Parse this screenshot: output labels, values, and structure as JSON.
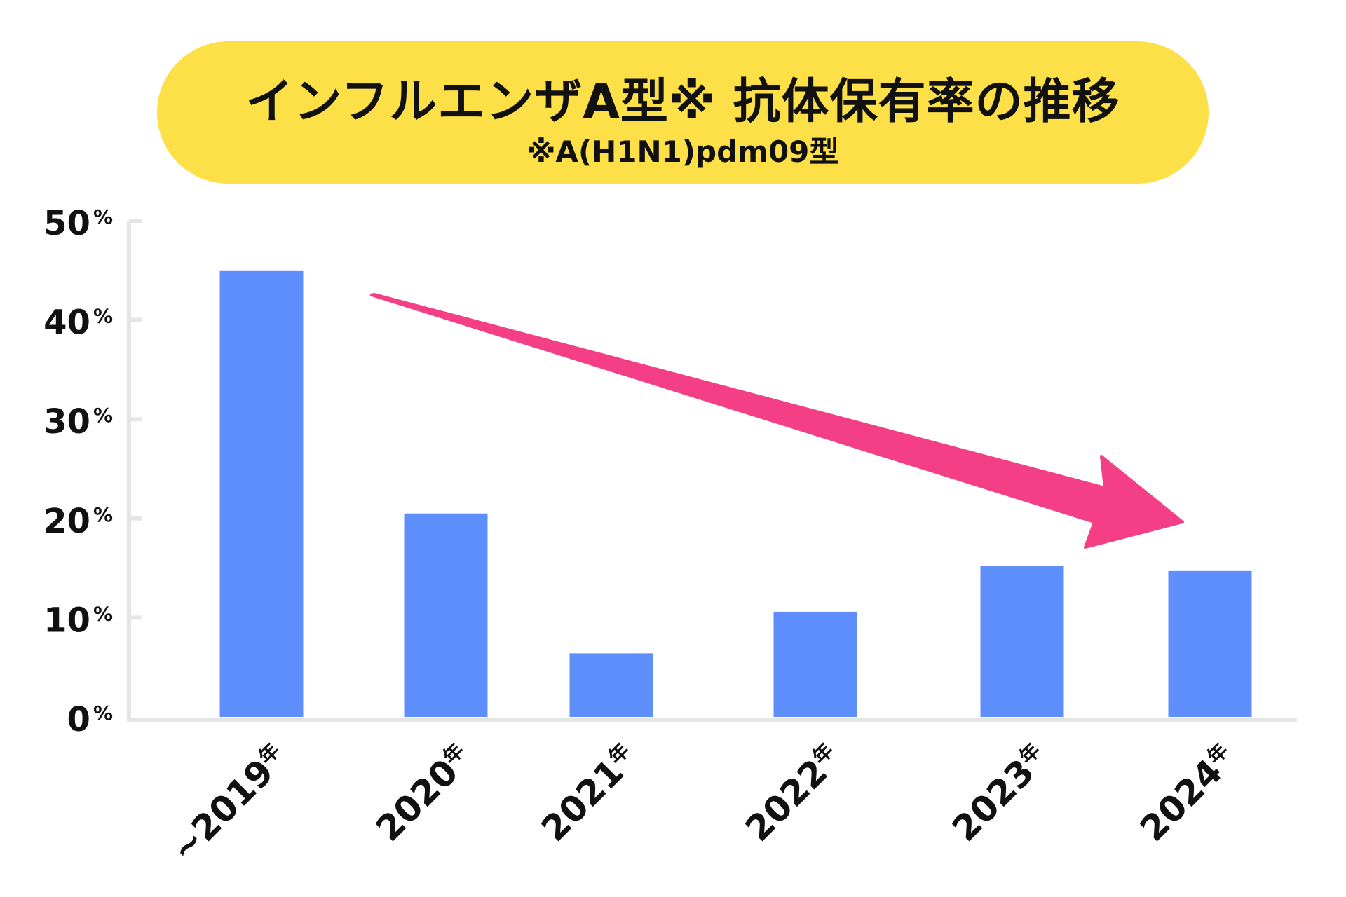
{
  "chart_data": {
    "type": "bar",
    "title": "インフルエンザA型※ 抗体保有率の推移",
    "subtitle": "※A(H1N1)pdm09型",
    "categories": [
      "~2019年",
      "2020年",
      "2021年",
      "2022年",
      "2023年",
      "2024年"
    ],
    "values": [
      45.0,
      20.5,
      6.4,
      10.6,
      15.2,
      14.7
    ],
    "unit": "%",
    "ylim": [
      0,
      50
    ],
    "yticks": [
      "0%",
      "10%",
      "20%",
      "30%",
      "40%",
      "50%"
    ],
    "grid": false,
    "annotation": "downward trend arrow",
    "colors": {
      "bar": "#5e8ffd",
      "arrow": "#f43f87",
      "title_bg": "#fde047",
      "axis": "#e5e5e5"
    }
  }
}
